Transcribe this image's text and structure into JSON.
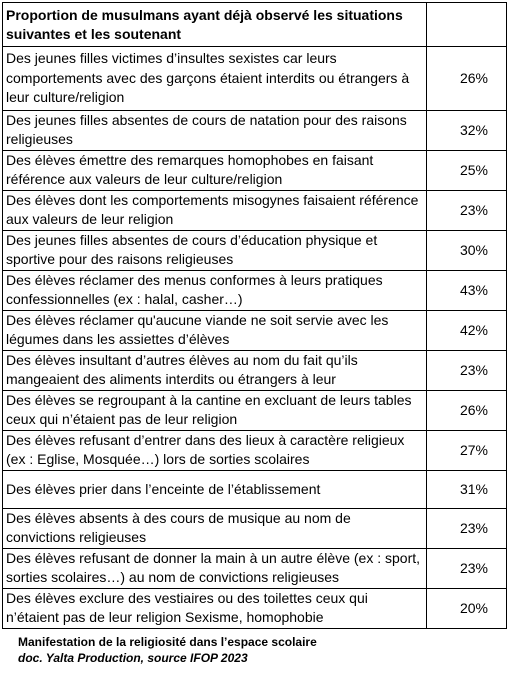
{
  "chart_data": {
    "type": "table",
    "title": "Proportion de musulmans ayant déjà observé les situations suivantes et les soutenant",
    "unit": "%",
    "rows": [
      {
        "label": "Des jeunes filles victimes d’insultes sexistes car leurs comportements avec des garçons étaient interdits ou étrangers à leur culture/religion",
        "value": 26,
        "display": "26%"
      },
      {
        "label": "Des jeunes filles absentes de cours de natation pour des raisons religieuses",
        "value": 32,
        "display": "32%"
      },
      {
        "label": "Des élèves émettre des remarques homophobes en faisant référence aux valeurs de leur culture/religion",
        "value": 25,
        "display": "25%"
      },
      {
        "label": "Des élèves dont les comportements misogynes faisaient référence aux valeurs de leur religion",
        "value": 23,
        "display": "23%"
      },
      {
        "label": "Des jeunes filles absentes de cours d’éducation physique et sportive pour des raisons religieuses",
        "value": 30,
        "display": "30%"
      },
      {
        "label": "Des élèves réclamer des menus conformes à leurs pratiques confessionnelles (ex : halal, casher…)",
        "value": 43,
        "display": "43%"
      },
      {
        "label": "Des élèves réclamer qu'aucune viande ne soit servie avec les légumes dans les assiettes d’élèves",
        "value": 42,
        "display": "42%"
      },
      {
        "label": "Des élèves insultant d’autres élèves au nom du fait qu’ils mangeaient des aliments interdits ou étrangers à leur",
        "value": 23,
        "display": "23%"
      },
      {
        "label": "Des élèves se regroupant à la cantine en excluant de leurs tables ceux qui n’étaient pas de leur religion",
        "value": 26,
        "display": "26%"
      },
      {
        "label": "Des élèves refusant d’entrer dans des lieux à caractère religieux (ex : Eglise, Mosquée…) lors de sorties scolaires",
        "value": 27,
        "display": "27%"
      },
      {
        "label": "Des élèves prier dans l’enceinte de l’établissement",
        "value": 31,
        "display": "31%"
      },
      {
        "label": "Des élèves absents à des cours de musique au nom de convictions religieuses",
        "value": 23,
        "display": "23%"
      },
      {
        "label": "Des élèves refusant de donner la main à un autre élève (ex : sport, sorties scolaires…) au nom de convictions religieuses",
        "value": 23,
        "display": "23%"
      },
      {
        "label": "Des élèves exclure des vestiaires ou des toilettes ceux qui n’étaient pas de leur religion Sexisme, homophobie",
        "value": 20,
        "display": "20%"
      }
    ]
  },
  "caption": {
    "line1": "Manifestation de la religiosité dans l’espace scolaire",
    "line2": "doc. Yalta Production, source IFOP 2023"
  }
}
